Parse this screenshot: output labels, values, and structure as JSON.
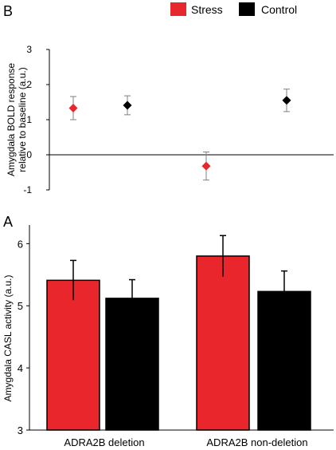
{
  "legend": {
    "items": [
      {
        "label": "Stress",
        "color": "#e8262b"
      },
      {
        "label": "Control",
        "color": "#000000"
      }
    ]
  },
  "chart_data": [
    {
      "panel_label": "B",
      "type": "scatter",
      "ylabel_line1": "Amygdala BOLD response",
      "ylabel_line2": "relative to baseline (a.u.)",
      "ylim": [
        -1,
        3
      ],
      "yticks": [
        "-1",
        "0",
        "1",
        "2",
        "3"
      ],
      "grid": false,
      "error_bars": true,
      "series": [
        {
          "name": "Stress",
          "color": "#e8262b",
          "points": [
            {
              "group": 1,
              "y": 1.33,
              "err": 0.33
            },
            {
              "group": 2,
              "y": -0.32,
              "err": 0.4
            }
          ]
        },
        {
          "name": "Control",
          "color": "#000000",
          "points": [
            {
              "group": 1,
              "y": 1.41,
              "err": 0.27
            },
            {
              "group": 2,
              "y": 1.55,
              "err": 0.32
            }
          ]
        }
      ]
    },
    {
      "panel_label": "A",
      "type": "bar",
      "categories": [
        "ADRA2B deletion",
        "ADRA2B non-deletion"
      ],
      "ylabel": "Amygdala CASL activity (a.u.)",
      "ylim": [
        3,
        6.3
      ],
      "yticks": [
        "3",
        "4",
        "5",
        "6"
      ],
      "grid": false,
      "error_bars": true,
      "series": [
        {
          "name": "Stress",
          "color": "#e8262b",
          "values": [
            5.41,
            5.8
          ],
          "errors": [
            0.32,
            0.33
          ]
        },
        {
          "name": "Control",
          "color": "#000000",
          "values": [
            5.12,
            5.23
          ],
          "errors": [
            0.3,
            0.33
          ]
        }
      ]
    }
  ]
}
